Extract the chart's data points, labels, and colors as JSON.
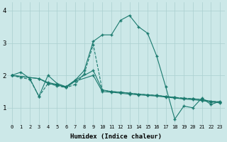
{
  "xlabel": "Humidex (Indice chaleur)",
  "background_color": "#cce8e8",
  "line_color": "#1a7a6e",
  "grid_color": "#aacfcf",
  "xlim": [
    -0.5,
    23.5
  ],
  "ylim": [
    0.5,
    4.25
  ],
  "yticks": [
    1,
    2,
    3,
    4
  ],
  "xticks": [
    0,
    1,
    2,
    3,
    4,
    5,
    6,
    7,
    8,
    9,
    10,
    11,
    12,
    13,
    14,
    15,
    16,
    17,
    18,
    19,
    20,
    21,
    22,
    23
  ],
  "series": [
    {
      "x": [
        0,
        1,
        2,
        3,
        4,
        5,
        6,
        7,
        8,
        9,
        10,
        11,
        12,
        13,
        14,
        15,
        16,
        17,
        18,
        19,
        20,
        21,
        22,
        23
      ],
      "y": [
        2.0,
        2.1,
        1.9,
        1.35,
        2.0,
        1.75,
        1.65,
        1.85,
        2.15,
        3.05,
        3.25,
        3.25,
        3.7,
        3.85,
        3.5,
        3.3,
        2.6,
        1.65,
        0.65,
        1.05,
        1.0,
        1.3,
        1.1,
        1.2
      ],
      "dashed": false
    },
    {
      "x": [
        0,
        3,
        4,
        5,
        6,
        7,
        9,
        10,
        11,
        12,
        13,
        14,
        15,
        16,
        17,
        18,
        19,
        20,
        21,
        22,
        23
      ],
      "y": [
        2.0,
        1.9,
        1.75,
        1.7,
        1.65,
        1.85,
        2.15,
        1.55,
        1.5,
        1.48,
        1.45,
        1.42,
        1.4,
        1.38,
        1.35,
        1.32,
        1.28,
        1.28,
        1.25,
        1.2,
        1.18
      ],
      "dashed": false
    },
    {
      "x": [
        0,
        3,
        4,
        5,
        6,
        7,
        9,
        10,
        11,
        12,
        13,
        14,
        15,
        16,
        17,
        18,
        19,
        20,
        21,
        22,
        23
      ],
      "y": [
        2.0,
        1.9,
        1.78,
        1.72,
        1.62,
        1.82,
        2.0,
        1.5,
        1.48,
        1.45,
        1.42,
        1.4,
        1.38,
        1.36,
        1.33,
        1.3,
        1.27,
        1.25,
        1.22,
        1.18,
        1.15
      ],
      "dashed": false
    },
    {
      "x": [
        0,
        1,
        2,
        3,
        4,
        5,
        6,
        7,
        8,
        9,
        10,
        11,
        12,
        13,
        14,
        15,
        16,
        17,
        18,
        19,
        20,
        21,
        22,
        23
      ],
      "y": [
        2.0,
        1.93,
        1.88,
        1.35,
        1.75,
        1.68,
        1.62,
        1.72,
        2.05,
        2.95,
        1.55,
        1.5,
        1.48,
        1.45,
        1.42,
        1.4,
        1.38,
        1.35,
        1.32,
        1.3,
        1.28,
        1.25,
        1.2,
        1.18
      ],
      "dashed": true
    }
  ]
}
